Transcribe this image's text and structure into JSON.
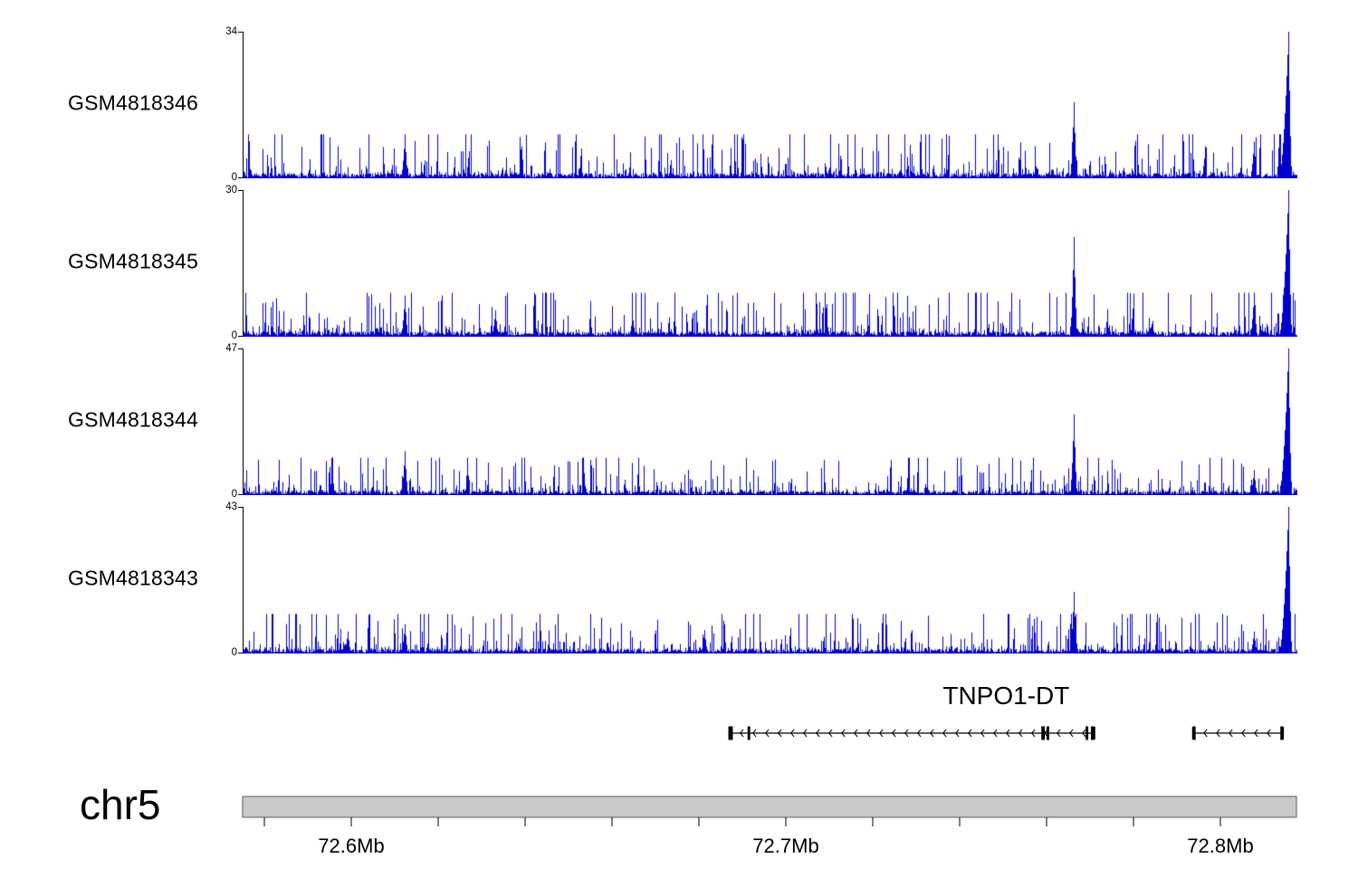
{
  "figure": {
    "background": "#ffffff",
    "signal_color": "#0000cc",
    "axis_color": "#000000",
    "gene_color": "#000000",
    "ruler_fill": "#c9c9c9",
    "ruler_border": "#5a5a5a"
  },
  "chart_data": {
    "type": "area",
    "description": "Genome-browser read coverage for four GEO samples over chr5 with TNPO1-DT gene model",
    "genome": {
      "chromosome": "chr5",
      "x_start_mb": 72.575,
      "x_end_mb": 72.8175,
      "x_ticks_mb": [
        72.6,
        72.7,
        72.8
      ],
      "x_tick_labels": [
        "72.6Mb",
        "72.7Mb",
        "72.8Mb"
      ],
      "minor_tick_start_mb": 72.58,
      "minor_tick_interval_mb": 0.02
    },
    "tracks": [
      {
        "name": "GSM4818346",
        "ymax": 34,
        "ymin": 0,
        "color": "#0000cc",
        "noise_seed": 346,
        "noise_scale": 1.0,
        "peaks": [
          {
            "pos_mb": 72.612,
            "h": 0.3
          },
          {
            "pos_mb": 72.766,
            "h": 0.52
          },
          {
            "pos_mb": 72.8075,
            "h": 0.25
          },
          {
            "pos_mb": 72.8155,
            "h": 1.0
          }
        ]
      },
      {
        "name": "GSM4818345",
        "ymax": 30,
        "ymin": 0,
        "color": "#0000cc",
        "noise_seed": 345,
        "noise_scale": 1.0,
        "peaks": [
          {
            "pos_mb": 72.612,
            "h": 0.28
          },
          {
            "pos_mb": 72.633,
            "h": 0.18
          },
          {
            "pos_mb": 72.766,
            "h": 0.68
          },
          {
            "pos_mb": 72.8075,
            "h": 0.3
          },
          {
            "pos_mb": 72.8155,
            "h": 1.0
          }
        ]
      },
      {
        "name": "GSM4818344",
        "ymax": 47,
        "ymin": 0,
        "color": "#0000cc",
        "noise_seed": 344,
        "noise_scale": 0.85,
        "peaks": [
          {
            "pos_mb": 72.612,
            "h": 0.3
          },
          {
            "pos_mb": 72.766,
            "h": 0.55
          },
          {
            "pos_mb": 72.8075,
            "h": 0.17
          },
          {
            "pos_mb": 72.8155,
            "h": 1.0
          }
        ]
      },
      {
        "name": "GSM4818343",
        "ymax": 43,
        "ymin": 0,
        "color": "#0000cc",
        "noise_seed": 343,
        "noise_scale": 0.9,
        "peaks": [
          {
            "pos_mb": 72.599,
            "h": 0.15
          },
          {
            "pos_mb": 72.612,
            "h": 0.2
          },
          {
            "pos_mb": 72.681,
            "h": 0.16
          },
          {
            "pos_mb": 72.766,
            "h": 0.42
          },
          {
            "pos_mb": 72.8075,
            "h": 0.15
          },
          {
            "pos_mb": 72.8155,
            "h": 1.0
          }
        ]
      }
    ],
    "genes": [
      {
        "name": "TNPO1-DT",
        "strand": "-",
        "segments": [
          {
            "start_mb": 72.687,
            "end_mb": 72.771,
            "exons_mb": [
              [
                72.6868,
                72.6878
              ],
              [
                72.6912,
                72.6918
              ],
              [
                72.7588,
                72.7596
              ],
              [
                72.76,
                72.7606
              ],
              [
                72.769,
                72.7696
              ],
              [
                72.7702,
                72.771
              ]
            ]
          },
          {
            "start_mb": 72.7937,
            "end_mb": 72.8144,
            "exons_mb": [
              [
                72.7937,
                72.7943
              ],
              [
                72.8138,
                72.8144
              ]
            ]
          }
        ]
      }
    ]
  }
}
